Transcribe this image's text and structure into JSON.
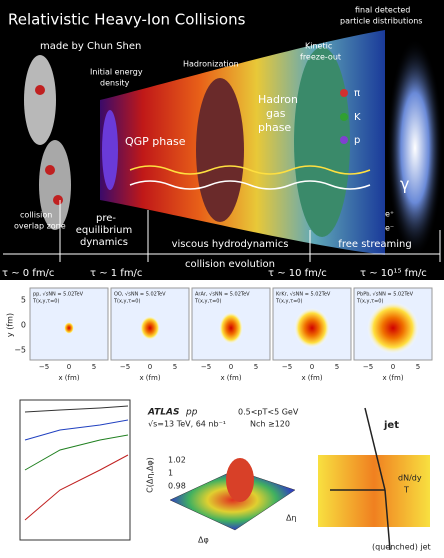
{
  "top": {
    "title": "Relativistic Heavy-Ion Collisions",
    "author": "made by Chun Shen",
    "initial": [
      "Initial energy",
      "density"
    ],
    "hadronization": "Hadronization",
    "freezeout": [
      "Kinetic",
      "freeze-out"
    ],
    "final": [
      "final detected",
      "particle distributions"
    ],
    "qgp": "QGP phase",
    "hadron_gas": [
      "Hadron",
      "gas",
      "phase"
    ],
    "particles": [
      "π",
      "K",
      "p",
      "γ",
      "e⁺",
      "e⁻"
    ],
    "overlap": [
      "collision",
      "overlap zone"
    ],
    "pre_eq": [
      "pre-",
      "equilibrium",
      "dynamics"
    ],
    "hydro": "viscous hydrodynamics",
    "free": "free streaming",
    "evolution": "collision evolution",
    "times": [
      "τ ~ 0 fm/c",
      "τ ~ 1 fm/c",
      "τ ~ 10 fm/c",
      "τ ~ 10¹⁵ fm/c"
    ]
  },
  "middle": {
    "panels": [
      "pp, √sNN = 5.02TeV",
      "OO, √sNN = 5.02TeV",
      "ArAr, √sNN = 5.02TeV",
      "KrKr, √sNN = 5.02TeV",
      "PbPb, √sNN = 5.02TeV"
    ],
    "panel_sub": "T(x,y,τ=0)",
    "y_label": "y (fm)",
    "x_label": "x (fm)",
    "y_ticks": [
      "5",
      "0",
      "−5"
    ],
    "x_ticks": [
      "−5",
      "0",
      "5"
    ]
  },
  "bottom": {
    "atlas": {
      "experiment": "ATLAS",
      "system": "pp",
      "energy": "√s=13 TeV, 64 nb⁻¹",
      "pt_cut": "0.5<pT<5 GeV",
      "nch_cut": "Nch ≥120",
      "z_label": "C(Δη,Δφ)",
      "z_ticks": [
        "1.02",
        "1",
        "0.98"
      ],
      "x_label": "Δφ",
      "y_label": "Δη"
    },
    "jet": {
      "jet": "jet",
      "medium": [
        "dN/dy",
        "T"
      ],
      "quenched": "(quenched) jet"
    }
  }
}
